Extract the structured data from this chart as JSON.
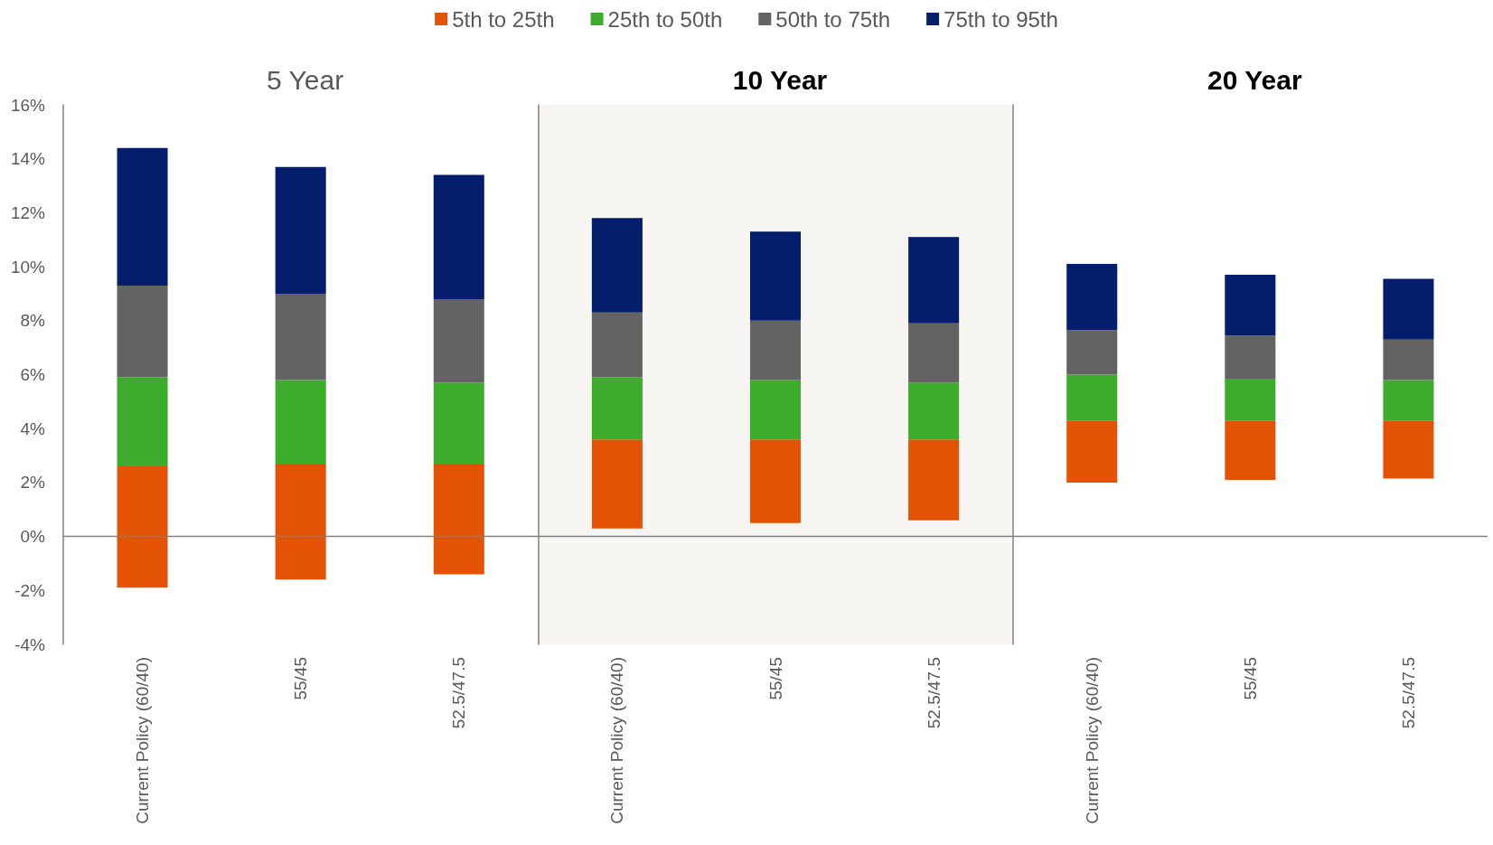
{
  "chart_data": [
    {
      "type": "bar",
      "title": "5 Year",
      "categories": [
        "Current Policy (60/40)",
        "55/45",
        "52.5/47.5"
      ],
      "series": [
        {
          "name": "5th to 25th",
          "color": "#e35205",
          "base": [
            -1.9,
            -1.6,
            -1.4
          ],
          "values": [
            4.5,
            4.3,
            4.1
          ]
        },
        {
          "name": "25th to 50th",
          "color": "#3dab2b",
          "base": [
            2.6,
            2.7,
            2.7
          ],
          "values": [
            3.3,
            3.1,
            3.0
          ]
        },
        {
          "name": "50th to 75th",
          "color": "#636363",
          "base": [
            5.9,
            5.8,
            5.7
          ],
          "values": [
            3.4,
            3.2,
            3.1
          ]
        },
        {
          "name": "75th to 95th",
          "color": "#041e6b",
          "base": [
            9.3,
            9.0,
            8.8
          ],
          "values": [
            5.1,
            4.7,
            4.6
          ]
        }
      ],
      "ylim": [
        -4,
        16
      ],
      "yticks": [
        {
          "value": -4,
          "label": "-4%"
        },
        {
          "value": -2,
          "label": "-2%"
        },
        {
          "value": 0,
          "label": "0%"
        },
        {
          "value": 2,
          "label": "2%"
        },
        {
          "value": 4,
          "label": "4%"
        },
        {
          "value": 6,
          "label": "6%"
        },
        {
          "value": 8,
          "label": "8%"
        },
        {
          "value": 10,
          "label": "10%"
        },
        {
          "value": 12,
          "label": "12%"
        },
        {
          "value": 14,
          "label": "14%"
        },
        {
          "value": 16,
          "label": "16%"
        }
      ],
      "ref_lines": [
        {
          "axis": "y",
          "value": 0,
          "color": "#808080"
        }
      ],
      "legend": "top"
    },
    {
      "type": "bar",
      "title": "10 Year",
      "categories": [
        "Current Policy (60/40)",
        "55/45",
        "52.5/47.5"
      ],
      "series": [
        {
          "color": "#e35205",
          "base": [
            0.3,
            0.5,
            0.6
          ],
          "values": [
            3.3,
            3.1,
            3.0
          ]
        },
        {
          "color": "#3dab2b",
          "base": [
            3.6,
            3.6,
            3.6
          ],
          "values": [
            2.3,
            2.2,
            2.1
          ]
        },
        {
          "color": "#636363",
          "base": [
            5.9,
            5.8,
            5.7
          ],
          "values": [
            2.4,
            2.2,
            2.2
          ]
        },
        {
          "color": "#041e6b",
          "base": [
            8.3,
            8.0,
            7.9
          ],
          "values": [
            3.5,
            3.3,
            3.2
          ]
        }
      ],
      "ylim": [
        -4,
        16
      ],
      "tick_labels": "x",
      "ref_lines": [
        {
          "axis": "y",
          "value": 0,
          "color": "#808080"
        }
      ],
      "bands": [
        {
          "axis": "y",
          "from": -4,
          "to": 16,
          "color": "#f6f5f1"
        }
      ]
    },
    {
      "type": "bar",
      "title": "20 Year",
      "categories": [
        "Current Policy (60/40)",
        "55/45",
        "52.5/47.5"
      ],
      "series": [
        {
          "color": "#e35205",
          "base": [
            2.0,
            2.1,
            2.15
          ],
          "values": [
            2.3,
            2.2,
            2.15
          ]
        },
        {
          "color": "#3dab2b",
          "base": [
            4.3,
            4.3,
            4.3
          ],
          "values": [
            1.7,
            1.55,
            1.5
          ]
        },
        {
          "color": "#636363",
          "base": [
            6.0,
            5.85,
            5.8
          ],
          "values": [
            1.65,
            1.6,
            1.5
          ]
        },
        {
          "color": "#041e6b",
          "base": [
            7.65,
            7.45,
            7.3
          ],
          "values": [
            2.45,
            2.25,
            2.25
          ]
        }
      ],
      "ylim": [
        -4,
        16
      ],
      "tick_labels": "x",
      "ref_lines": [
        {
          "axis": "y",
          "value": 0,
          "color": "#808080"
        }
      ]
    }
  ]
}
